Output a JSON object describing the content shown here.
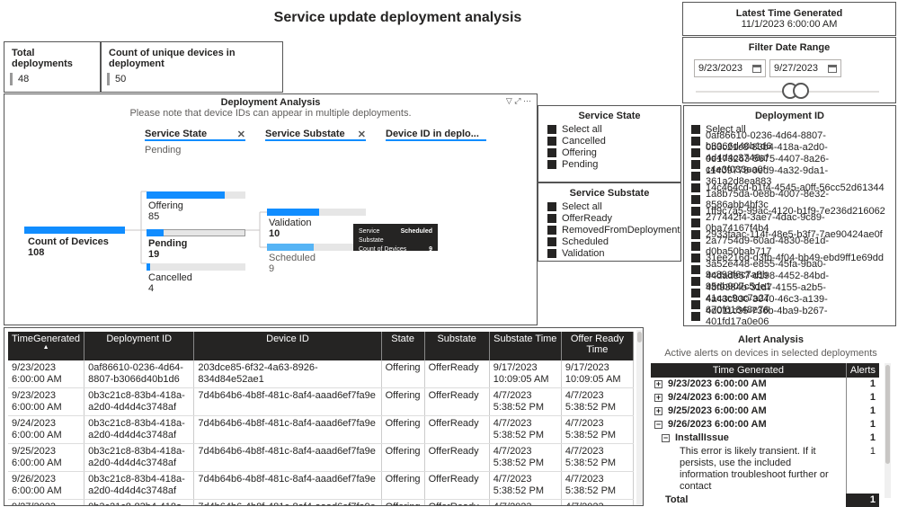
{
  "page": {
    "title": "Service update deployment analysis"
  },
  "cards": {
    "total_deployments": {
      "label": "Total deployments",
      "value": "48"
    },
    "unique_devices": {
      "label": "Count of unique devices in deployment",
      "value": "50"
    }
  },
  "latest_time": {
    "label": "Latest Time Generated",
    "value": "11/1/2023 6:00:00 AM"
  },
  "filter_date": {
    "label": "Filter Date Range",
    "start": "9/23/2023",
    "end": "9/27/2023"
  },
  "decomposition": {
    "title": "Deployment Analysis",
    "subtitle": "Please note that device IDs can appear in multiple deployments.",
    "levels": [
      {
        "name": "Service State",
        "selected": "Pending"
      },
      {
        "name": "Service Substate",
        "selected": ""
      },
      {
        "name": "Device ID in deplo...",
        "selected": ""
      }
    ],
    "root": {
      "label": "Count of Devices",
      "value": "108"
    },
    "states": [
      {
        "label": "Offering",
        "value": "85",
        "fraction": 0.787
      },
      {
        "label": "Pending",
        "value": "19",
        "fraction": 0.176
      },
      {
        "label": "Cancelled",
        "value": "4",
        "fraction": 0.037
      }
    ],
    "substates": [
      {
        "label": "Validation",
        "value": "10",
        "fraction": 0.526
      },
      {
        "label": "Scheduled",
        "value": "9",
        "fraction": 0.474
      }
    ],
    "tooltip": {
      "k1": "Service Substate",
      "v1": "Scheduled",
      "k2": "Count of Devices",
      "v2": "9"
    }
  },
  "slicer_state": {
    "title": "Service State",
    "items": [
      "Select all",
      "Cancelled",
      "Offering",
      "Pending"
    ]
  },
  "slicer_substate": {
    "title": "Service Substate",
    "items": [
      "Select all",
      "OfferReady",
      "RemovedFromDeployment",
      "Scheduled",
      "Validation"
    ]
  },
  "slicer_deployment": {
    "title": "Deployment ID",
    "items": [
      "Select all",
      "0af86610-0236-4d64-8807-b3066d40b1d6",
      "0b3c21c8-83b4-418a-a2d0-4d4d4c3748af",
      "0e173263-5675-4407-8a26-c4e3f033ea0f",
      "11409778-0ed9-4a32-9da1-361a2d8ea883",
      "14c464cd-b1f4-4545-a0ff-56cc52d61344",
      "1a8b75da-0e8b-4007-8e32-8586abb4bf3c",
      "1ff9c7a5-99ac-4120-b1f9-7e236d216062",
      "277442f4-3ae7-4dac-9c89-0ba74167f4b4",
      "2933faac-114f-48e5-b3f7-7ae90424ae0f",
      "2a7754d9-60ad-4830-8e1d-d0ba50bab717",
      "31ee216d-d3fb-4f04-bb49-ebd9ff1e69dd",
      "3a52e448-e855-45fa-9ba0-9c898f6c7a8b",
      "44dade57-d198-4452-84bd-95db907c5de1",
      "48f9384b-31d7-4155-a2b5-41cac9cc7a27",
      "4a43c830-3040-46c3-a139-670f61848e76",
      "4d011c35-736b-4ba9-b267-401fd17a0e06"
    ]
  },
  "grid": {
    "headers": [
      "TimeGenerated",
      "Deployment ID",
      "Device ID",
      "State",
      "Substate",
      "Substate Time",
      "Offer Ready Time"
    ],
    "rows": [
      [
        "9/23/2023 6:00:00 AM",
        "0af86610-0236-4d64-8807-b3066d40b1d6",
        "203dce85-6f32-4a63-8926-834d84e52ae1",
        "Offering",
        "OfferReady",
        "9/17/2023 10:09:05 AM",
        "9/17/2023 10:09:05 AM"
      ],
      [
        "9/23/2023 6:00:00 AM",
        "0b3c21c8-83b4-418a-a2d0-4d4d4c3748af",
        "7d4b64b6-4b8f-481c-8af4-aaad6ef7fa9e",
        "Offering",
        "OfferReady",
        "4/7/2023 5:38:52 PM",
        "4/7/2023 5:38:52 PM"
      ],
      [
        "9/24/2023 6:00:00 AM",
        "0b3c21c8-83b4-418a-a2d0-4d4d4c3748af",
        "7d4b64b6-4b8f-481c-8af4-aaad6ef7fa9e",
        "Offering",
        "OfferReady",
        "4/7/2023 5:38:52 PM",
        "4/7/2023 5:38:52 PM"
      ],
      [
        "9/25/2023 6:00:00 AM",
        "0b3c21c8-83b4-418a-a2d0-4d4d4c3748af",
        "7d4b64b6-4b8f-481c-8af4-aaad6ef7fa9e",
        "Offering",
        "OfferReady",
        "4/7/2023 5:38:52 PM",
        "4/7/2023 5:38:52 PM"
      ],
      [
        "9/26/2023 6:00:00 AM",
        "0b3c21c8-83b4-418a-a2d0-4d4d4c3748af",
        "7d4b64b6-4b8f-481c-8af4-aaad6ef7fa9e",
        "Offering",
        "OfferReady",
        "4/7/2023 5:38:52 PM",
        "4/7/2023 5:38:52 PM"
      ],
      [
        "9/27/2023",
        "0b3c21c8-83b4-418a-",
        "7d4b64b6-4b8f-481c-8af4-aaad6ef7fa9e",
        "Offering",
        "OfferReady",
        "4/7/2023",
        "4/7/2023"
      ]
    ]
  },
  "alerts": {
    "title": "Alert Analysis",
    "subtitle": "Active alerts on devices in selected deployments",
    "headers": [
      "Time Generated",
      "Alerts"
    ],
    "rows": [
      {
        "exp": "+",
        "label": "9/23/2023 6:00:00 AM",
        "value": "1"
      },
      {
        "exp": "+",
        "label": "9/24/2023 6:00:00 AM",
        "value": "1"
      },
      {
        "exp": "+",
        "label": "9/25/2023 6:00:00 AM",
        "value": "1"
      },
      {
        "exp": "−",
        "label": "9/26/2023 6:00:00 AM",
        "value": "1"
      }
    ],
    "sub": {
      "exp": "−",
      "label": "InstallIssue",
      "value": "1"
    },
    "detail": {
      "text": "This error is likely transient. If it persists, use the included information troubleshoot further or contact",
      "value": "1"
    },
    "total": {
      "label": "Total",
      "value": "1"
    }
  },
  "colors": {
    "accent": "#118dff",
    "accent_light": "#56b4f5",
    "header_bg": "#252423"
  }
}
